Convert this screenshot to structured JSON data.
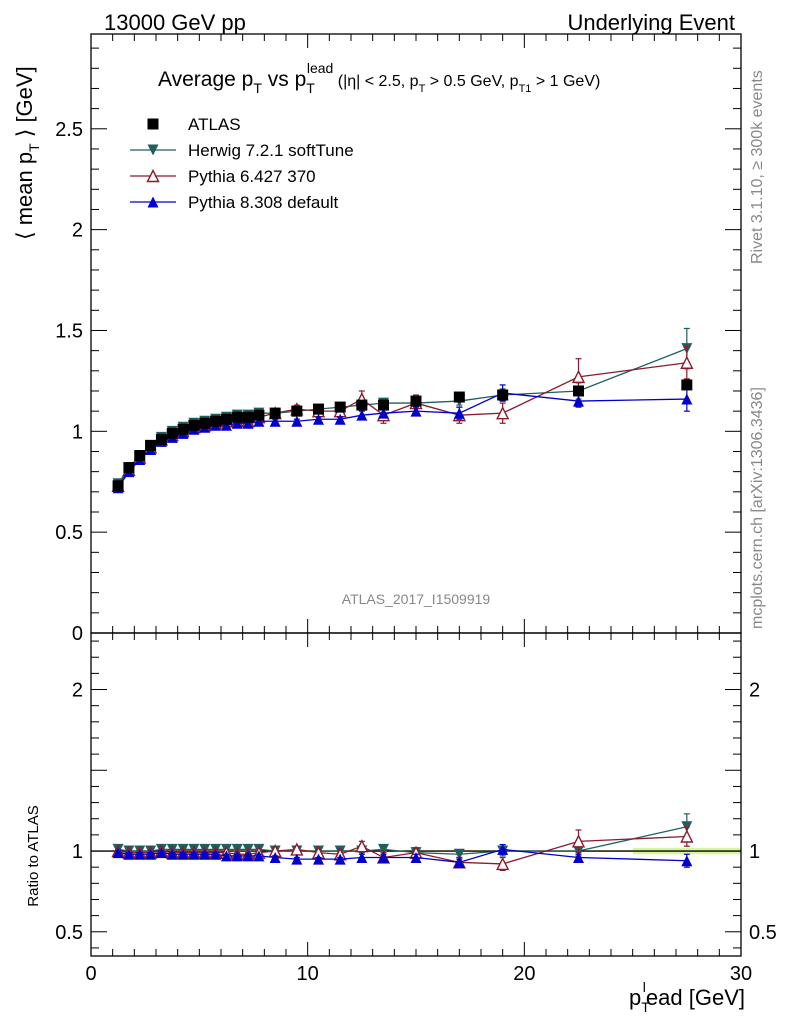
{
  "header": {
    "left": "13000 GeV pp",
    "right": "Underlying Event"
  },
  "side_labels": {
    "rivet": "Rivet 3.1.10, ≥ 300k events",
    "mcplots": "mcplots.cern.ch [arXiv:1306.3436]"
  },
  "watermark": "ATLAS_2017_I1509919",
  "title": {
    "main": "Average p",
    "main_sub": "T",
    "vs": " vs p",
    "vs_sub": "T",
    "vs_sup": "lead",
    "cuts": " (|η| < 2.5, p",
    "cuts_sub1": "T",
    "cuts_mid": " > 0.5 GeV, p",
    "cuts_sub2": "T1",
    "cuts_end": " > 1 GeV)"
  },
  "axes": {
    "ylabel_main": "⟨ mean p",
    "ylabel_sub": "T",
    "ylabel_end": " ⟩ [GeV]",
    "ylabel_ratio": "Ratio to ATLAS",
    "xlabel_a": "p",
    "xlabel_sub": "T",
    "xlabel_sup": "l",
    "xlabel_b": "ead [GeV]"
  },
  "chart_data": [
    {
      "type": "scatter",
      "panel": "main",
      "xlim": [
        0,
        30
      ],
      "ylim": [
        0,
        2.97
      ],
      "yticks": [
        0,
        0.5,
        1,
        1.5,
        2,
        2.5
      ],
      "ytick_labels": [
        "0",
        "0.5",
        "1",
        "1.5",
        "2",
        "2.5"
      ],
      "legend_position": "top-left",
      "x": [
        1.25,
        1.75,
        2.25,
        2.75,
        3.25,
        3.75,
        4.25,
        4.75,
        5.25,
        5.75,
        6.25,
        6.75,
        7.25,
        7.75,
        8.5,
        9.5,
        10.5,
        11.5,
        12.5,
        13.5,
        15,
        17,
        19,
        22.5,
        27.5
      ],
      "series": [
        {
          "name": "ATLAS",
          "color": "#000000",
          "marker": "square",
          "values": [
            0.73,
            0.82,
            0.88,
            0.93,
            0.96,
            0.99,
            1.01,
            1.03,
            1.04,
            1.05,
            1.06,
            1.07,
            1.07,
            1.08,
            1.09,
            1.1,
            1.11,
            1.12,
            1.13,
            1.13,
            1.15,
            1.17,
            1.18,
            1.2,
            1.23
          ],
          "errors": [
            0.01,
            0.01,
            0.01,
            0.01,
            0.01,
            0.01,
            0.01,
            0.01,
            0.01,
            0.01,
            0.01,
            0.01,
            0.01,
            0.01,
            0.01,
            0.01,
            0.01,
            0.01,
            0.01,
            0.01,
            0.01,
            0.01,
            0.01,
            0.02,
            0.02
          ]
        },
        {
          "name": "Herwig 7.2.1 softTune",
          "color": "#1f5f5f",
          "marker": "triangle-down",
          "values": [
            0.74,
            0.82,
            0.88,
            0.93,
            0.97,
            1.0,
            1.02,
            1.04,
            1.05,
            1.06,
            1.07,
            1.08,
            1.08,
            1.09,
            1.09,
            1.1,
            1.11,
            1.12,
            1.13,
            1.14,
            1.14,
            1.15,
            1.18,
            1.2,
            1.41
          ],
          "errors": [
            0.01,
            0.01,
            0.01,
            0.01,
            0.01,
            0.01,
            0.01,
            0.01,
            0.01,
            0.01,
            0.01,
            0.01,
            0.01,
            0.01,
            0.01,
            0.01,
            0.01,
            0.01,
            0.01,
            0.01,
            0.02,
            0.02,
            0.03,
            0.04,
            0.1
          ]
        },
        {
          "name": "Pythia 6.427 370",
          "color": "#8b1a2b",
          "marker": "triangle-up-open",
          "values": [
            0.73,
            0.81,
            0.87,
            0.92,
            0.96,
            0.98,
            1.0,
            1.02,
            1.03,
            1.04,
            1.05,
            1.05,
            1.05,
            1.07,
            1.09,
            1.11,
            1.1,
            1.1,
            1.16,
            1.08,
            1.14,
            1.08,
            1.09,
            1.27,
            1.34
          ],
          "errors": [
            0.01,
            0.01,
            0.01,
            0.01,
            0.01,
            0.01,
            0.01,
            0.01,
            0.01,
            0.01,
            0.01,
            0.01,
            0.01,
            0.01,
            0.02,
            0.02,
            0.02,
            0.03,
            0.04,
            0.04,
            0.04,
            0.04,
            0.05,
            0.09,
            0.08
          ]
        },
        {
          "name": "Pythia 8.308 default",
          "color": "#0000cc",
          "marker": "triangle-up",
          "values": [
            0.72,
            0.8,
            0.86,
            0.91,
            0.95,
            0.97,
            0.99,
            1.01,
            1.02,
            1.03,
            1.03,
            1.04,
            1.04,
            1.05,
            1.05,
            1.05,
            1.06,
            1.06,
            1.08,
            1.09,
            1.1,
            1.09,
            1.19,
            1.15,
            1.16
          ],
          "errors": [
            0.01,
            0.01,
            0.01,
            0.01,
            0.01,
            0.01,
            0.01,
            0.01,
            0.01,
            0.01,
            0.01,
            0.01,
            0.01,
            0.01,
            0.01,
            0.01,
            0.01,
            0.01,
            0.02,
            0.02,
            0.02,
            0.03,
            0.04,
            0.03,
            0.06
          ]
        }
      ]
    },
    {
      "type": "scatter",
      "panel": "ratio",
      "xlim": [
        0,
        30
      ],
      "ylim": [
        0.35,
        2.35
      ],
      "yticks": [
        0.5,
        1,
        2
      ],
      "ytick_labels": [
        "0.5",
        "1",
        "2"
      ],
      "xticks": [
        0,
        10,
        20,
        30
      ],
      "xtick_labels": [
        "0",
        "10",
        "20",
        "30"
      ],
      "reference_line": 1,
      "x": [
        1.25,
        1.75,
        2.25,
        2.75,
        3.25,
        3.75,
        4.25,
        4.75,
        5.25,
        5.75,
        6.25,
        6.75,
        7.25,
        7.75,
        8.5,
        9.5,
        10.5,
        11.5,
        12.5,
        13.5,
        15,
        17,
        19,
        22.5,
        27.5
      ],
      "series": [
        {
          "name": "Herwig 7.2.1 softTune",
          "color": "#1f5f5f",
          "marker": "triangle-down",
          "values": [
            1.01,
            1.0,
            1.0,
            1.0,
            1.01,
            1.01,
            1.01,
            1.01,
            1.01,
            1.01,
            1.01,
            1.01,
            1.01,
            1.01,
            1.0,
            1.0,
            1.0,
            1.0,
            1.0,
            1.01,
            0.99,
            0.98,
            1.0,
            1.0,
            1.15
          ],
          "errors": [
            0.01,
            0.01,
            0.01,
            0.01,
            0.01,
            0.01,
            0.01,
            0.01,
            0.01,
            0.01,
            0.01,
            0.01,
            0.01,
            0.01,
            0.01,
            0.01,
            0.01,
            0.01,
            0.01,
            0.01,
            0.02,
            0.02,
            0.03,
            0.03,
            0.08
          ]
        },
        {
          "name": "Pythia 6.427 370",
          "color": "#8b1a2b",
          "marker": "triangle-up-open",
          "values": [
            1.0,
            0.99,
            0.99,
            0.99,
            1.0,
            0.99,
            0.99,
            0.99,
            0.99,
            0.99,
            0.99,
            0.98,
            0.98,
            0.99,
            1.0,
            1.01,
            0.99,
            0.98,
            1.03,
            0.96,
            0.99,
            0.93,
            0.92,
            1.06,
            1.09
          ],
          "errors": [
            0.01,
            0.01,
            0.01,
            0.01,
            0.01,
            0.01,
            0.01,
            0.01,
            0.01,
            0.01,
            0.01,
            0.01,
            0.01,
            0.01,
            0.02,
            0.02,
            0.02,
            0.03,
            0.03,
            0.03,
            0.03,
            0.03,
            0.04,
            0.07,
            0.06
          ]
        },
        {
          "name": "Pythia 8.308 default",
          "color": "#0000cc",
          "marker": "triangle-up",
          "values": [
            0.99,
            0.98,
            0.98,
            0.98,
            0.99,
            0.98,
            0.98,
            0.98,
            0.98,
            0.98,
            0.97,
            0.97,
            0.97,
            0.97,
            0.96,
            0.95,
            0.95,
            0.95,
            0.96,
            0.96,
            0.96,
            0.93,
            1.01,
            0.96,
            0.94
          ],
          "errors": [
            0.01,
            0.01,
            0.01,
            0.01,
            0.01,
            0.01,
            0.01,
            0.01,
            0.01,
            0.01,
            0.01,
            0.01,
            0.01,
            0.01,
            0.01,
            0.01,
            0.01,
            0.01,
            0.02,
            0.02,
            0.02,
            0.02,
            0.03,
            0.02,
            0.04
          ]
        }
      ]
    }
  ]
}
